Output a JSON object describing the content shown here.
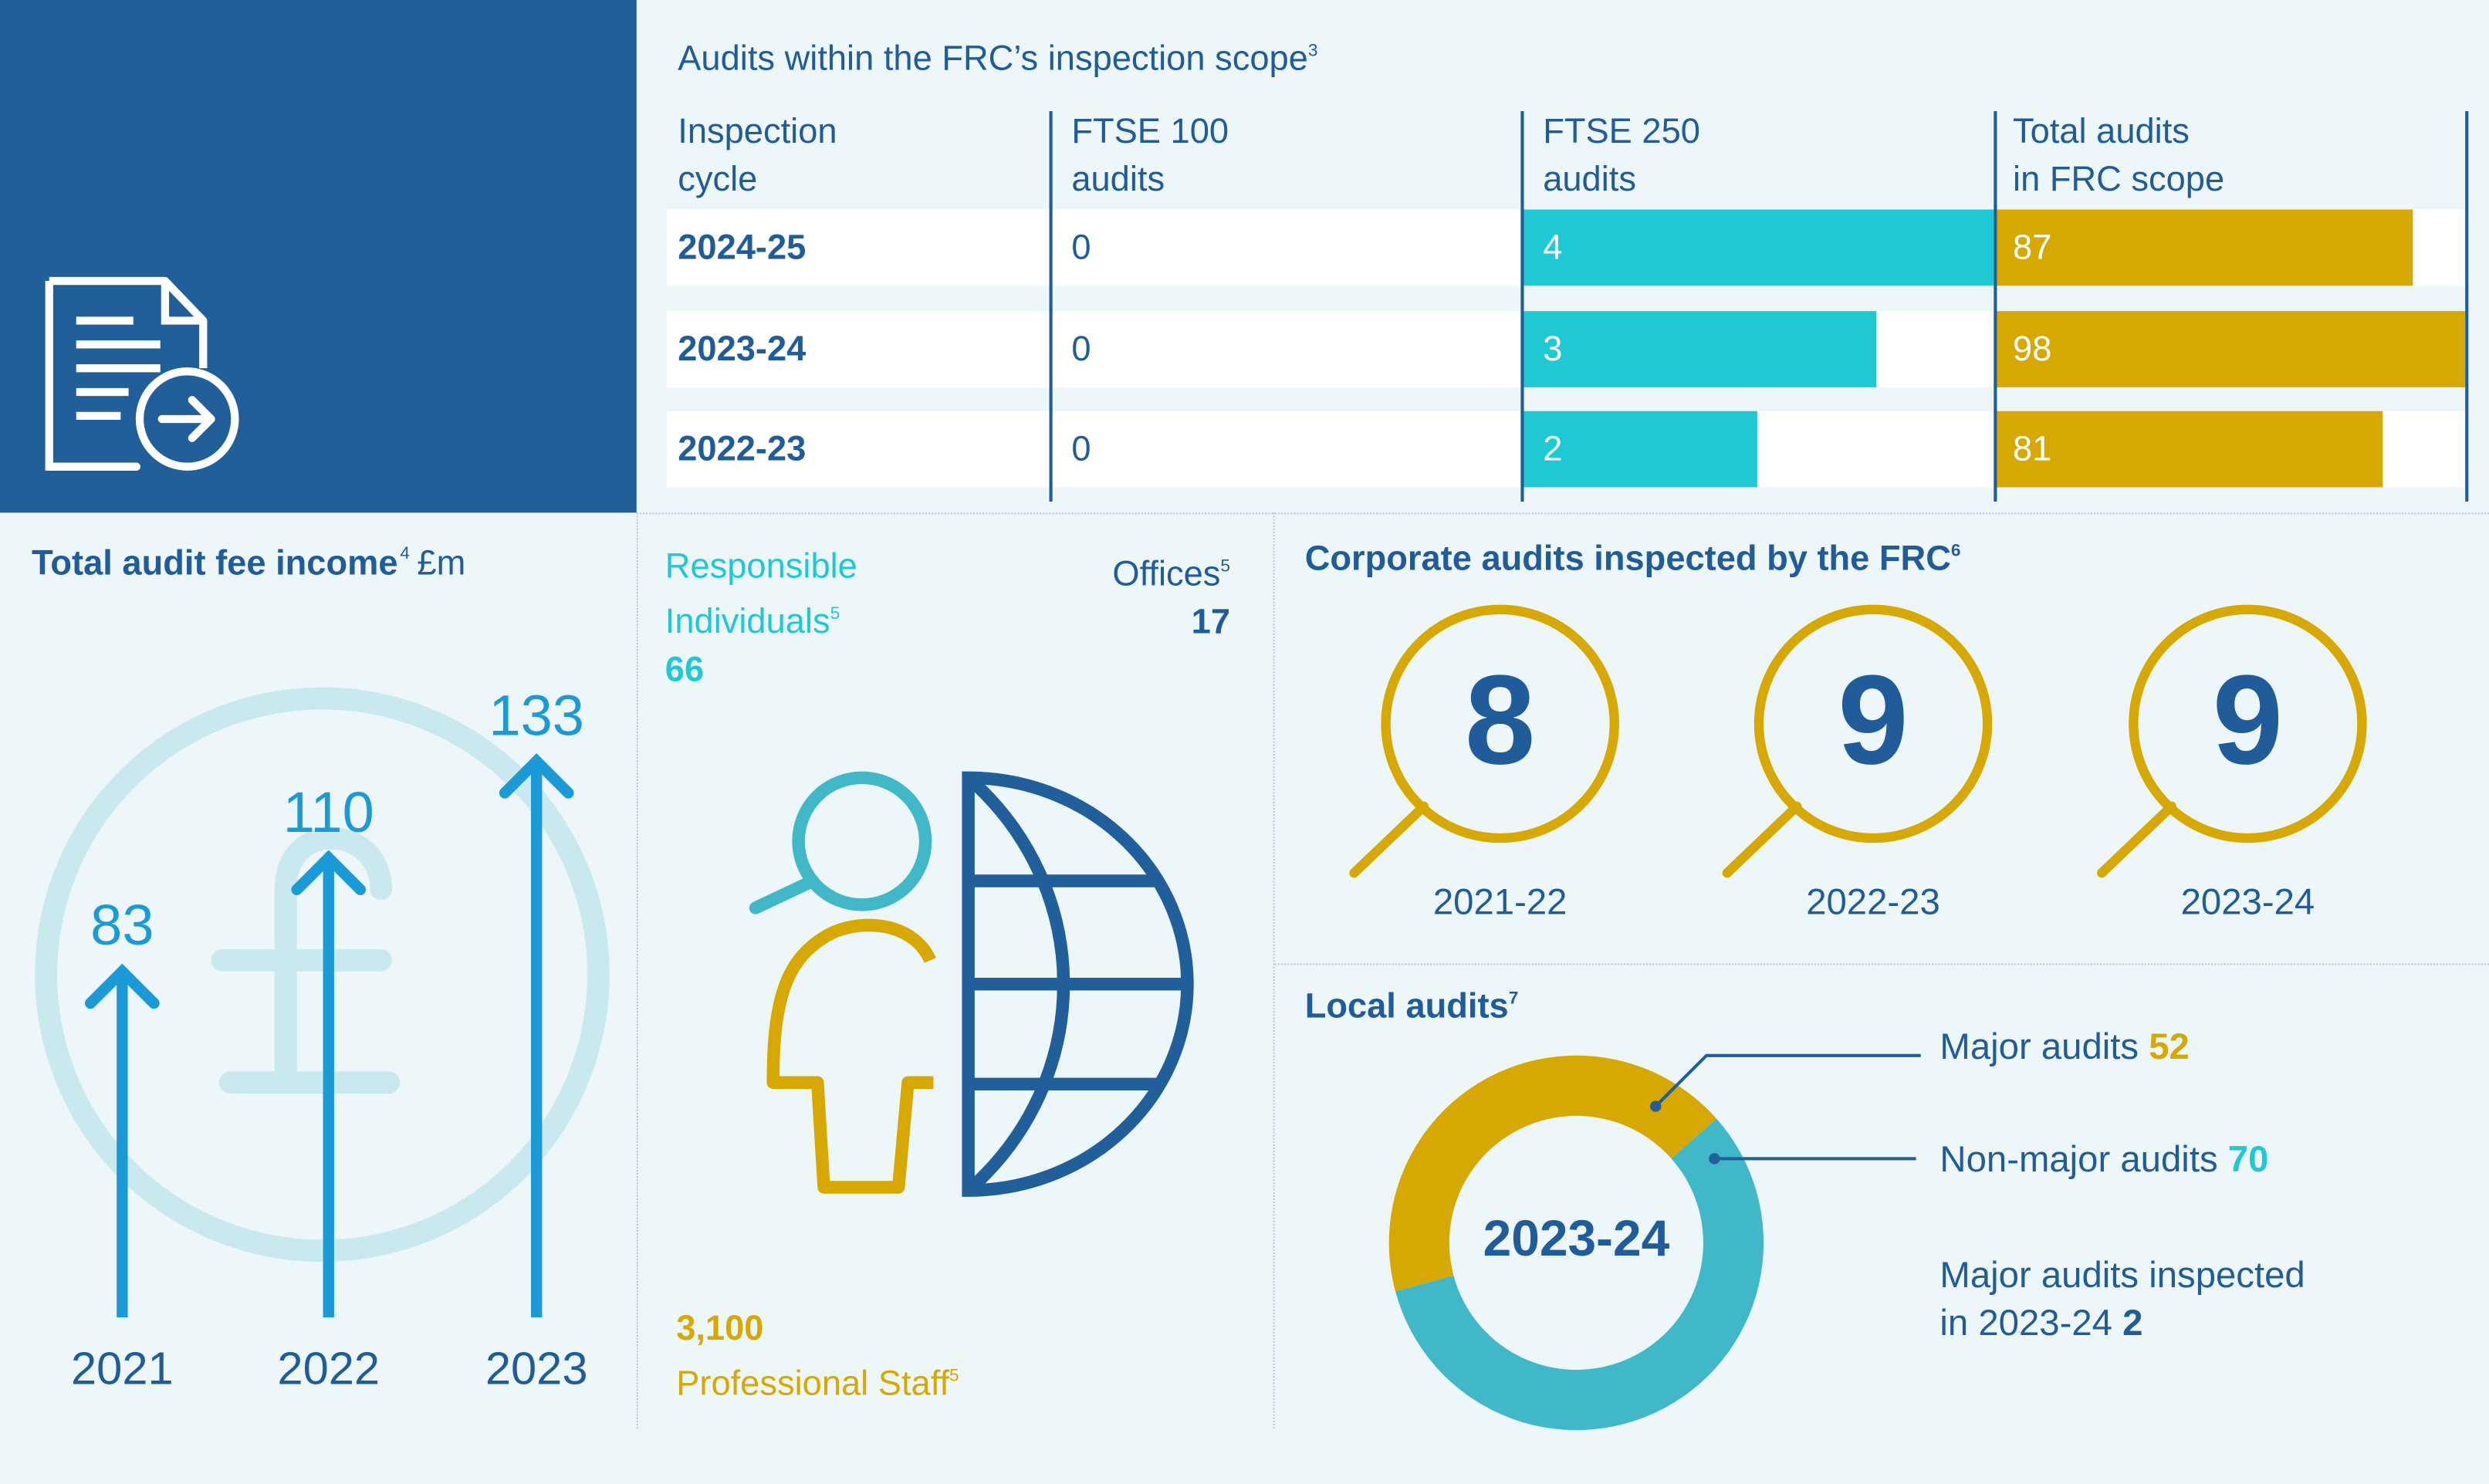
{
  "scope_table": {
    "title": "Audits within the FRC’s inspection scope",
    "title_note": "3",
    "headers": [
      [
        "Inspection",
        "cycle"
      ],
      [
        "FTSE 100",
        "audits"
      ],
      [
        "FTSE 250",
        "audits"
      ],
      [
        "Total audits",
        "in FRC scope"
      ]
    ],
    "rows": [
      {
        "cycle": "2024-25",
        "ftse100": "0",
        "ftse250": "4",
        "total": "87"
      },
      {
        "cycle": "2023-24",
        "ftse100": "0",
        "ftse250": "3",
        "total": "98"
      },
      {
        "cycle": "2022-23",
        "ftse100": "0",
        "ftse250": "2",
        "total": "81"
      }
    ]
  },
  "fee_income": {
    "title": "Total audit fee income",
    "title_note": "4",
    "unit": "£m",
    "bars": [
      {
        "year": "2021",
        "value": "83"
      },
      {
        "year": "2022",
        "value": "110"
      },
      {
        "year": "2023",
        "value": "133"
      }
    ]
  },
  "people": {
    "ri_label_1": "Responsible",
    "ri_label_2": "Individuals",
    "ri_note": "5",
    "ri_value": "66",
    "offices_label": "Offices",
    "offices_note": "5",
    "offices_value": "17",
    "staff_value": "3,100",
    "staff_label": "Professional Staff",
    "staff_note": "5"
  },
  "corporate": {
    "title": "Corporate audits inspected by the FRC",
    "title_note": "6",
    "items": [
      {
        "year": "2021-22",
        "value": "8"
      },
      {
        "year": "2022-23",
        "value": "9"
      },
      {
        "year": "2023-24",
        "value": "9"
      }
    ]
  },
  "local": {
    "title": "Local audits",
    "title_note": "7",
    "center_label": "2023-24",
    "major_label": "Major audits",
    "major_value": "52",
    "nonmajor_label": "Non-major audits",
    "nonmajor_value": "70",
    "inspected_label_1": "Major audits inspected",
    "inspected_label_2": "in 2023-24",
    "inspected_value": "2"
  },
  "colors": {
    "navy": "#215f9a",
    "text_blue": "#1f5c99",
    "cyan": "#1fc9d3",
    "gold": "#d6a800",
    "teal": "#41b8c7",
    "arrow_blue": "#1a9ad6"
  },
  "chart_data": [
    {
      "type": "bar",
      "title": "Audits within the FRC’s inspection scope",
      "categories": [
        "2024-25",
        "2023-24",
        "2022-23"
      ],
      "series": [
        {
          "name": "FTSE 100 audits",
          "values": [
            0,
            0,
            0
          ]
        },
        {
          "name": "FTSE 250 audits",
          "values": [
            4,
            3,
            2
          ]
        },
        {
          "name": "Total audits in FRC scope",
          "values": [
            87,
            98,
            81
          ]
        }
      ]
    },
    {
      "type": "bar",
      "title": "Total audit fee income £m",
      "categories": [
        "2021",
        "2022",
        "2023"
      ],
      "values": [
        83,
        110,
        133
      ]
    },
    {
      "type": "table",
      "title": "Corporate audits inspected by the FRC",
      "categories": [
        "2021-22",
        "2022-23",
        "2023-24"
      ],
      "values": [
        8,
        9,
        9
      ]
    },
    {
      "type": "pie",
      "title": "Local audits",
      "categories": [
        "Major audits",
        "Non-major audits"
      ],
      "values": [
        52,
        70
      ]
    }
  ]
}
